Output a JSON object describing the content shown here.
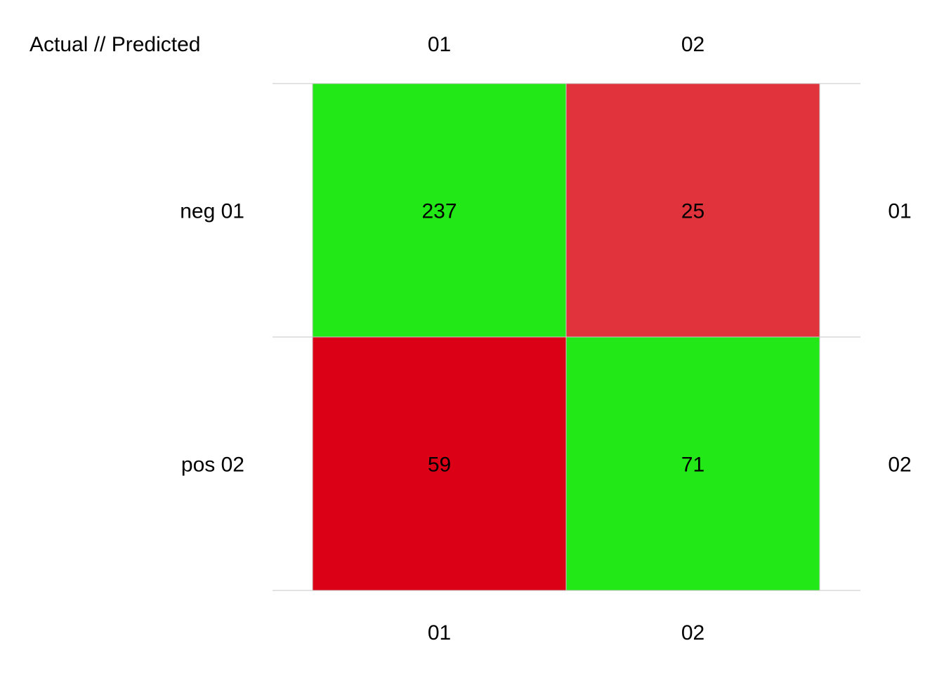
{
  "chart_data": {
    "type": "heatmap",
    "title": "Actual // Predicted",
    "x_categories": [
      "01",
      "02"
    ],
    "y_categories": [
      "neg 01",
      "pos 02"
    ],
    "right_labels": [
      "01",
      "02"
    ],
    "values": [
      [
        237,
        25
      ],
      [
        59,
        71
      ]
    ],
    "colors": [
      [
        "#22e817",
        "#e0333c"
      ],
      [
        "#dc0016",
        "#22e817"
      ]
    ],
    "grid": true
  }
}
